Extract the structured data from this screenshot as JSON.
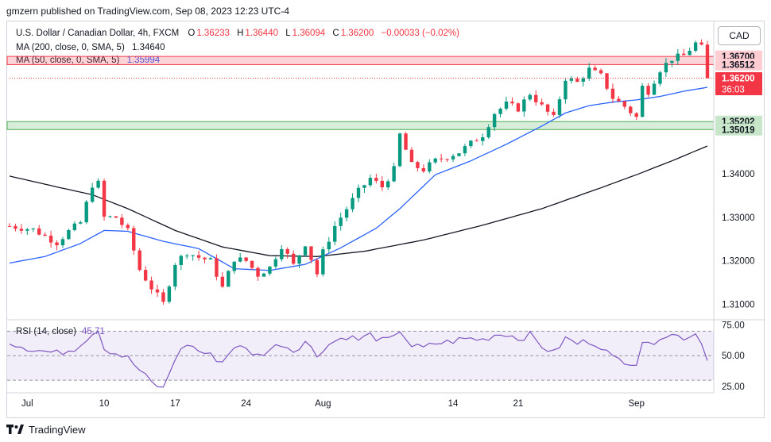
{
  "header": {
    "publisher": "gmzern published on TradingView.com, Sep 08, 2023 12:23 UTC-4"
  },
  "legend": {
    "symbol": "U.S. Dollar / Canadian Dollar, 4h, FXCM",
    "o_label": "O",
    "o": "1.36233",
    "h_label": "H",
    "h": "1.36440",
    "l_label": "L",
    "l": "1.36094",
    "c_label": "C",
    "c": "1.36200",
    "change": "−0.00033 (−0.02%)",
    "ma200_label": "MA (200, close, 0, SMA, 5)",
    "ma200_value": "1.34640",
    "ma50_label": "MA (50, close, 0, SMA, 5)",
    "ma50_value": "1.35994",
    "rsi_label": "RSI (14, close)",
    "rsi_value": "45.71"
  },
  "currency_button": "CAD",
  "price_labels": {
    "top_zone": "1.36700",
    "zone_low": "1.36512",
    "last_price": "1.36200",
    "countdown": "36:03",
    "support_high": "1.35202",
    "support_low": "1.35019"
  },
  "colors": {
    "up": "#089981",
    "down": "#f23645",
    "ma50": "#2962ff",
    "ma200": "#131722",
    "rsi": "#7e57c2",
    "resistance": "#f23645",
    "support": "#4caf50"
  },
  "footer": {
    "brand": "TradingView"
  },
  "chart_data": {
    "type": "candlestick",
    "price_axis": {
      "min": 1.307,
      "max": 1.3745,
      "ticks": [
        "1.31000",
        "1.32000",
        "1.33000",
        "1.34000"
      ]
    },
    "rsi_axis": {
      "min": 21,
      "max": 78,
      "ticks": [
        "75.00",
        "50.00",
        "25.00"
      ]
    },
    "x_labels": [
      {
        "label": "Jul",
        "index": 3
      },
      {
        "label": "10",
        "index": 16
      },
      {
        "label": "17",
        "index": 28
      },
      {
        "label": "24",
        "index": 40
      },
      {
        "label": "Aug",
        "index": 53
      },
      {
        "label": "14",
        "index": 75
      },
      {
        "label": "21",
        "index": 86
      },
      {
        "label": "Sep",
        "index": 106
      }
    ],
    "keypoints": [
      [
        0,
        1.328
      ],
      [
        4,
        1.3272
      ],
      [
        8,
        1.3242
      ],
      [
        10,
        1.3268
      ],
      [
        12,
        1.3288
      ],
      [
        14,
        1.3375
      ],
      [
        15,
        1.3378
      ],
      [
        16,
        1.33
      ],
      [
        18,
        1.33
      ],
      [
        20,
        1.3268
      ],
      [
        22,
        1.318
      ],
      [
        24,
        1.3138
      ],
      [
        26,
        1.3102
      ],
      [
        28,
        1.3195
      ],
      [
        30,
        1.322
      ],
      [
        32,
        1.3208
      ],
      [
        34,
        1.32
      ],
      [
        36,
        1.3138
      ],
      [
        38,
        1.3205
      ],
      [
        40,
        1.32
      ],
      [
        42,
        1.3168
      ],
      [
        44,
        1.3185
      ],
      [
        46,
        1.3235
      ],
      [
        48,
        1.319
      ],
      [
        50,
        1.324
      ],
      [
        52,
        1.317
      ],
      [
        53,
        1.322
      ],
      [
        55,
        1.328
      ],
      [
        57,
        1.332
      ],
      [
        59,
        1.336
      ],
      [
        61,
        1.339
      ],
      [
        63,
        1.337
      ],
      [
        65,
        1.341
      ],
      [
        66,
        1.349
      ],
      [
        68,
        1.342
      ],
      [
        70,
        1.341
      ],
      [
        72,
        1.343
      ],
      [
        74,
        1.344
      ],
      [
        76,
        1.345
      ],
      [
        78,
        1.347
      ],
      [
        80,
        1.349
      ],
      [
        82,
        1.354
      ],
      [
        84,
        1.356
      ],
      [
        86,
        1.355
      ],
      [
        88,
        1.3585
      ],
      [
        90,
        1.3555
      ],
      [
        92,
        1.3528
      ],
      [
        94,
        1.362
      ],
      [
        96,
        1.361
      ],
      [
        98,
        1.364
      ],
      [
        100,
        1.3625
      ],
      [
        102,
        1.3575
      ],
      [
        104,
        1.3555
      ],
      [
        106,
        1.353
      ],
      [
        107,
        1.36
      ],
      [
        108,
        1.359
      ],
      [
        110,
        1.364
      ],
      [
        112,
        1.3665
      ],
      [
        114,
        1.3672
      ],
      [
        116,
        1.37
      ],
      [
        117,
        1.369
      ],
      [
        118,
        1.362
      ]
    ],
    "ma200_points": [
      [
        0,
        1.3395
      ],
      [
        8,
        1.337
      ],
      [
        14,
        1.3352
      ],
      [
        20,
        1.332
      ],
      [
        28,
        1.327
      ],
      [
        36,
        1.3232
      ],
      [
        44,
        1.3212
      ],
      [
        52,
        1.321
      ],
      [
        60,
        1.3222
      ],
      [
        70,
        1.3248
      ],
      [
        80,
        1.3282
      ],
      [
        90,
        1.332
      ],
      [
        100,
        1.3368
      ],
      [
        106,
        1.3398
      ],
      [
        112,
        1.343
      ],
      [
        118,
        1.3464
      ]
    ],
    "ma50_points": [
      [
        0,
        1.3195
      ],
      [
        6,
        1.321
      ],
      [
        12,
        1.324
      ],
      [
        16,
        1.327
      ],
      [
        20,
        1.3268
      ],
      [
        26,
        1.3245
      ],
      [
        32,
        1.3228
      ],
      [
        38,
        1.3182
      ],
      [
        44,
        1.3178
      ],
      [
        50,
        1.3192
      ],
      [
        56,
        1.323
      ],
      [
        62,
        1.3275
      ],
      [
        66,
        1.332
      ],
      [
        72,
        1.3398
      ],
      [
        78,
        1.343
      ],
      [
        84,
        1.3468
      ],
      [
        90,
        1.351
      ],
      [
        94,
        1.354
      ],
      [
        98,
        1.3557
      ],
      [
        102,
        1.3565
      ],
      [
        106,
        1.357
      ],
      [
        110,
        1.3578
      ],
      [
        114,
        1.359
      ],
      [
        118,
        1.3599
      ]
    ],
    "rsi_keypoints": [
      [
        0,
        61
      ],
      [
        4,
        55
      ],
      [
        8,
        52
      ],
      [
        11,
        56
      ],
      [
        14,
        68
      ],
      [
        15,
        72
      ],
      [
        16,
        56
      ],
      [
        20,
        48
      ],
      [
        24,
        28
      ],
      [
        26,
        23
      ],
      [
        28,
        48
      ],
      [
        30,
        60
      ],
      [
        32,
        54
      ],
      [
        34,
        50
      ],
      [
        36,
        45
      ],
      [
        38,
        58
      ],
      [
        40,
        55
      ],
      [
        42,
        50
      ],
      [
        44,
        55
      ],
      [
        46,
        60
      ],
      [
        48,
        54
      ],
      [
        50,
        62
      ],
      [
        52,
        50
      ],
      [
        53,
        56
      ],
      [
        55,
        62
      ],
      [
        57,
        66
      ],
      [
        59,
        63
      ],
      [
        61,
        67
      ],
      [
        63,
        62
      ],
      [
        65,
        64
      ],
      [
        66,
        71
      ],
      [
        68,
        58
      ],
      [
        70,
        56
      ],
      [
        72,
        60
      ],
      [
        74,
        61
      ],
      [
        76,
        63
      ],
      [
        78,
        64
      ],
      [
        80,
        63
      ],
      [
        82,
        67
      ],
      [
        84,
        68
      ],
      [
        86,
        64
      ],
      [
        88,
        67
      ],
      [
        90,
        58
      ],
      [
        92,
        52
      ],
      [
        94,
        64
      ],
      [
        96,
        60
      ],
      [
        98,
        62
      ],
      [
        100,
        58
      ],
      [
        102,
        48
      ],
      [
        104,
        46
      ],
      [
        106,
        44
      ],
      [
        107,
        62
      ],
      [
        108,
        58
      ],
      [
        110,
        66
      ],
      [
        112,
        67
      ],
      [
        114,
        65
      ],
      [
        116,
        68
      ],
      [
        117,
        62
      ],
      [
        118,
        46
      ]
    ],
    "resistance_zone": [
      1.36512,
      1.367
    ],
    "support_zone": [
      1.35019,
      1.35202
    ],
    "last_close": 1.362,
    "candle_count": 119
  }
}
